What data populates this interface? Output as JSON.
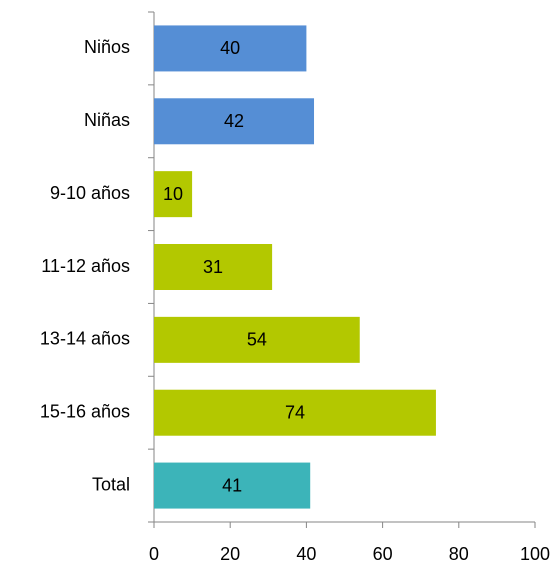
{
  "chart_data": {
    "type": "bar",
    "orientation": "horizontal",
    "categories": [
      "Niños",
      "Niñas",
      "9-10 años",
      "11-12 años",
      "13-14 años",
      "15-16 años",
      "Total"
    ],
    "values": [
      40,
      42,
      10,
      31,
      54,
      74,
      41
    ],
    "colors": [
      "#558ed5",
      "#558ed5",
      "#b3c800",
      "#b3c800",
      "#b3c800",
      "#b3c800",
      "#3cb4b9"
    ],
    "xlim": [
      0,
      100
    ],
    "xticks": [
      0,
      20,
      40,
      60,
      80,
      100
    ],
    "grid": false
  }
}
